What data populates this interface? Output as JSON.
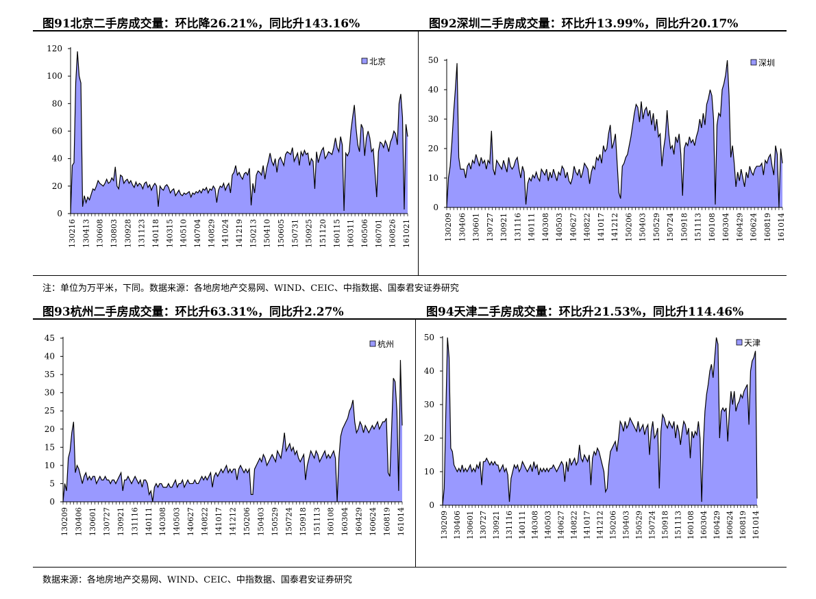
{
  "titles": {
    "top_left": "图91北京二手房成交量：环比降26.21%，同比升143.16%",
    "top_right": "图92深圳二手房成交量：环比升13.99%，同比升20.17%",
    "bottom_left": "图93杭州二手房成交量：环比升63.31%，同比升2.27%",
    "bottom_right": "图94天津二手房成交量：环比升21.53%，同比升114.46%"
  },
  "notes": {
    "middle": "注：单位为万平米，下同。数据来源：各地房地产交易网、WIND、CEIC、中指数据、国泰君安证券研究",
    "bottom": "数据来源：各地房地产交易网、WIND、CEIC、中指数据、国泰君安证券研究"
  },
  "colors": {
    "fill": "#9999ff",
    "line": "#000000"
  },
  "chart_data": [
    {
      "type": "area",
      "series": [
        {
          "name": "北京"
        }
      ],
      "ylim": [
        0,
        120
      ],
      "yticks": [
        0,
        20,
        40,
        60,
        80,
        100,
        120
      ],
      "xticks": [
        "130216",
        "130413",
        "130608",
        "130803",
        "130928",
        "131123",
        "140118",
        "140315",
        "140510",
        "140704",
        "140829",
        "141024",
        "141219",
        "150213",
        "150410",
        "150605",
        "150731",
        "150925",
        "151120",
        "160115",
        "160311",
        "160506",
        "160701",
        "160826",
        "161021"
      ],
      "values": [
        0,
        35,
        37,
        95,
        118,
        100,
        95,
        5,
        13,
        8,
        12,
        10,
        14,
        18,
        17,
        20,
        24,
        22,
        21,
        20,
        22,
        25,
        22,
        23,
        26,
        24,
        34,
        20,
        18,
        28,
        27,
        22,
        24,
        25,
        22,
        24,
        21,
        19,
        23,
        20,
        22,
        21,
        18,
        22,
        23,
        19,
        21,
        17,
        20,
        22,
        20,
        5,
        20,
        18,
        17,
        20,
        21,
        19,
        15,
        17,
        18,
        13,
        15,
        17,
        14,
        13,
        15,
        14,
        15,
        16,
        12,
        15,
        14,
        16,
        15,
        17,
        15,
        18,
        17,
        19,
        15,
        18,
        17,
        20,
        18,
        8,
        17,
        20,
        19,
        22,
        17,
        20,
        22,
        15,
        28,
        30,
        35,
        28,
        30,
        27,
        25,
        29,
        30,
        28,
        33,
        6,
        22,
        15,
        28,
        31,
        30,
        28,
        35,
        25,
        33,
        38,
        44,
        38,
        35,
        40,
        30,
        39,
        41,
        38,
        35,
        43,
        45,
        44,
        43,
        48,
        38,
        41,
        44,
        35,
        45,
        42,
        46,
        43,
        44,
        35,
        40,
        38,
        18,
        45,
        37,
        42,
        46,
        48,
        40,
        42,
        45,
        44,
        43,
        48,
        55,
        48,
        45,
        56,
        50,
        2,
        44,
        42,
        45,
        60,
        70,
        79,
        62,
        50,
        45,
        65,
        62,
        42,
        55,
        60,
        55,
        45,
        47,
        30,
        12,
        45,
        52,
        51,
        48,
        53,
        50,
        45,
        52,
        55,
        60,
        58,
        50,
        80,
        87,
        70,
        3,
        65,
        56
      ]
    },
    {
      "type": "area",
      "series": [
        {
          "name": "深圳"
        }
      ],
      "ylim": [
        0,
        50
      ],
      "yticks": [
        0,
        10,
        20,
        30,
        40,
        50
      ],
      "xticks": [
        "130209",
        "130406",
        "130601",
        "130727",
        "130921",
        "131116",
        "140111",
        "140308",
        "140503",
        "140627",
        "140822",
        "141017",
        "141212",
        "150206",
        "150403",
        "150529",
        "150724",
        "150918",
        "151113",
        "160108",
        "160304",
        "160429",
        "160624",
        "160819",
        "161014"
      ],
      "values": [
        0,
        10,
        14,
        22,
        32,
        40,
        49,
        17,
        13,
        13,
        13,
        10,
        14,
        15,
        13,
        16,
        15,
        18,
        16,
        14,
        17,
        15,
        16,
        13,
        16,
        15,
        26,
        13,
        11,
        16,
        15,
        14,
        13,
        16,
        14,
        12,
        17,
        14,
        13,
        14,
        16,
        17,
        13,
        10,
        14,
        12,
        1,
        8,
        10,
        9,
        11,
        10,
        12,
        10,
        9,
        13,
        12,
        11,
        13,
        9,
        12,
        10,
        13,
        11,
        9,
        12,
        11,
        14,
        13,
        10,
        12,
        9,
        8,
        10,
        14,
        12,
        11,
        13,
        10,
        12,
        15,
        14,
        13,
        8,
        12,
        14,
        13,
        17,
        16,
        18,
        15,
        21,
        19,
        20,
        25,
        28,
        20,
        22,
        25,
        15,
        5,
        3,
        14,
        15,
        17,
        18,
        21,
        24,
        28,
        32,
        35,
        34,
        29,
        36,
        30,
        33,
        34,
        31,
        33,
        28,
        32,
        26,
        30,
        24,
        25,
        14,
        20,
        24,
        33,
        25,
        20,
        21,
        18,
        24,
        22,
        25,
        18,
        4,
        20,
        22,
        21,
        24,
        22,
        23,
        21,
        24,
        26,
        30,
        27,
        32,
        28,
        35,
        37,
        40,
        38,
        30,
        1,
        28,
        32,
        31,
        40,
        42,
        45,
        50,
        38,
        17,
        21,
        15,
        7,
        12,
        9,
        13,
        10,
        7,
        12,
        10,
        14,
        12,
        11,
        13,
        14,
        14,
        14,
        15,
        11,
        16,
        15,
        17,
        18,
        14,
        11,
        21,
        18,
        0,
        20,
        15
      ]
    },
    {
      "type": "area",
      "series": [
        {
          "name": "杭州"
        }
      ],
      "ylim": [
        0,
        45
      ],
      "yticks": [
        0,
        5,
        10,
        15,
        20,
        25,
        30,
        35,
        40,
        45
      ],
      "xticks": [
        "130209",
        "130406",
        "130601",
        "130727",
        "130921",
        "131116",
        "140111",
        "140308",
        "140503",
        "140627",
        "140822",
        "141017",
        "141212",
        "150206",
        "150403",
        "150529",
        "150724",
        "150918",
        "151113",
        "160108",
        "160304",
        "160429",
        "160624",
        "160819",
        "161014"
      ],
      "values": [
        0,
        5,
        3,
        12,
        14,
        19,
        22,
        8,
        10,
        9,
        7,
        5,
        7,
        8,
        6,
        7,
        6,
        7,
        7,
        5,
        6,
        7,
        6,
        6,
        7,
        6,
        6,
        5,
        6,
        6,
        5,
        6,
        7,
        8,
        3,
        6,
        6,
        7,
        6,
        5,
        6,
        7,
        6,
        5,
        6,
        4,
        6,
        6,
        5,
        2,
        3,
        0,
        4,
        5,
        4,
        5,
        5,
        4,
        4,
        4,
        5,
        4,
        4,
        5,
        6,
        4,
        5,
        5,
        6,
        4,
        5,
        6,
        5,
        5,
        5,
        6,
        5,
        5,
        6,
        7,
        6,
        7,
        6,
        7,
        8,
        4,
        7,
        8,
        7,
        8,
        9,
        8,
        9,
        10,
        8,
        9,
        8,
        9,
        9,
        6,
        9,
        10,
        9,
        8,
        9,
        8,
        9,
        2,
        2,
        9,
        10,
        11,
        12,
        11,
        13,
        12,
        10,
        11,
        12,
        13,
        12,
        11,
        14,
        13,
        12,
        15,
        19,
        14,
        15,
        16,
        14,
        15,
        13,
        14,
        12,
        11,
        12,
        13,
        6,
        10,
        12,
        14,
        13,
        12,
        14,
        13,
        11,
        12,
        13,
        14,
        12,
        13,
        12,
        13,
        14,
        12,
        0,
        12,
        18,
        20,
        21,
        22,
        23,
        25,
        26,
        28,
        22,
        19,
        20,
        22,
        21,
        19,
        21,
        20,
        19,
        20,
        21,
        20,
        21,
        22,
        20,
        21,
        22,
        22,
        23,
        8,
        7,
        20,
        34,
        33,
        25,
        3,
        39,
        21
      ]
    },
    {
      "type": "area",
      "series": [
        {
          "name": "天津"
        }
      ],
      "ylim": [
        0,
        50
      ],
      "yticks": [
        0,
        10,
        20,
        30,
        40,
        50
      ],
      "xticks": [
        "130209",
        "130406",
        "130601",
        "130727",
        "130921",
        "131116",
        "140111",
        "140308",
        "140503",
        "140627",
        "140822",
        "141017",
        "141212",
        "150206",
        "150403",
        "150529",
        "150724",
        "150918",
        "151113",
        "160108",
        "160304",
        "160429",
        "160624",
        "160819",
        "161014"
      ],
      "values": [
        0,
        5,
        28,
        50,
        44,
        17,
        16,
        12,
        11,
        10,
        11,
        10,
        12,
        10,
        11,
        10,
        11,
        12,
        10,
        11,
        10,
        12,
        11,
        13,
        6,
        13,
        13,
        14,
        13,
        12,
        13,
        12,
        13,
        12,
        12,
        10,
        11,
        12,
        10,
        11,
        9,
        1,
        8,
        10,
        12,
        11,
        12,
        10,
        11,
        13,
        12,
        11,
        10,
        11,
        12,
        10,
        13,
        11,
        12,
        9,
        11,
        10,
        11,
        10,
        11,
        10,
        11,
        11,
        12,
        11,
        10,
        11,
        12,
        13,
        12,
        7,
        13,
        10,
        14,
        12,
        13,
        14,
        12,
        13,
        18,
        14,
        13,
        15,
        14,
        13,
        15,
        6,
        14,
        16,
        15,
        17,
        16,
        14,
        12,
        10,
        4,
        5,
        12,
        16,
        17,
        18,
        19,
        16,
        20,
        25,
        24,
        22,
        25,
        23,
        24,
        26,
        25,
        24,
        23,
        22,
        25,
        22,
        23,
        24,
        21,
        23,
        24,
        15,
        22,
        25,
        20,
        21,
        23,
        5,
        22,
        27,
        26,
        24,
        23,
        25,
        24,
        23,
        25,
        20,
        24,
        22,
        18,
        22,
        25,
        24,
        21,
        23,
        14,
        22,
        20,
        22,
        21,
        25,
        20,
        1,
        18,
        28,
        33,
        36,
        40,
        42,
        38,
        44,
        50,
        48,
        20,
        28,
        29,
        28,
        29,
        19,
        28,
        34,
        30,
        34,
        28,
        30,
        31,
        33,
        32,
        34,
        35,
        36,
        24,
        40,
        43,
        44,
        46,
        2
      ]
    }
  ]
}
